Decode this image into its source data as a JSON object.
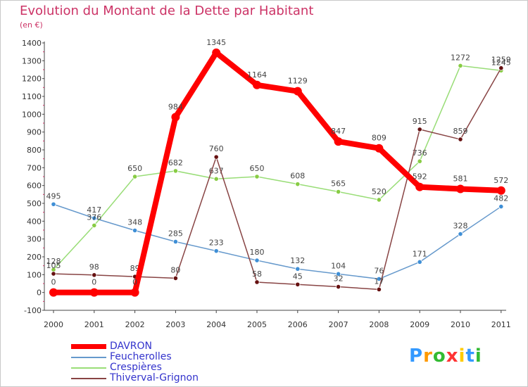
{
  "chart_data": {
    "type": "line",
    "title": "Evolution du Montant de la Dette par Habitant",
    "subtitle": "(en €)",
    "xlabel": "",
    "ylabel": "",
    "x": [
      "2000",
      "2001",
      "2002",
      "2003",
      "2004",
      "2005",
      "2006",
      "2007",
      "2008",
      "2009",
      "2010",
      "2011"
    ],
    "ylim": [
      -100,
      1400
    ],
    "yticks": [
      -100,
      0,
      100,
      200,
      300,
      400,
      500,
      600,
      700,
      800,
      900,
      1000,
      1100,
      1200,
      1300,
      1400
    ],
    "grid": false,
    "legend": "bottom-left",
    "series": [
      {
        "name": "DAVRON",
        "color": "#ff0000",
        "marker_color": "#ff0000",
        "values": [
          0,
          0,
          0,
          984,
          1345,
          1164,
          1129,
          847,
          809,
          592,
          581,
          572
        ]
      },
      {
        "name": "Feucherolles",
        "color": "#6699cc",
        "marker_color": "#3f8fd6",
        "values": [
          495,
          417,
          348,
          285,
          233,
          180,
          132,
          104,
          76,
          171,
          328,
          482
        ]
      },
      {
        "name": "Crespières",
        "color": "#99dd77",
        "marker_color": "#88cc44",
        "values": [
          128,
          376,
          650,
          682,
          637,
          650,
          608,
          565,
          520,
          736,
          1272,
          1245
        ]
      },
      {
        "name": "Thiverval-Grignon",
        "color": "#884444",
        "marker_color": "#661111",
        "values": [
          105,
          98,
          89,
          80,
          760,
          58,
          45,
          32,
          17,
          915,
          859,
          1259
        ]
      }
    ]
  },
  "logo": {
    "letters": [
      "P",
      "r",
      "o",
      "x",
      "i",
      "t",
      "i"
    ],
    "colors": [
      "#3399ff",
      "#ff9900",
      "#33bb33",
      "#ff3333",
      "#ffcc00",
      "#3399ff",
      "#33bb33"
    ]
  }
}
